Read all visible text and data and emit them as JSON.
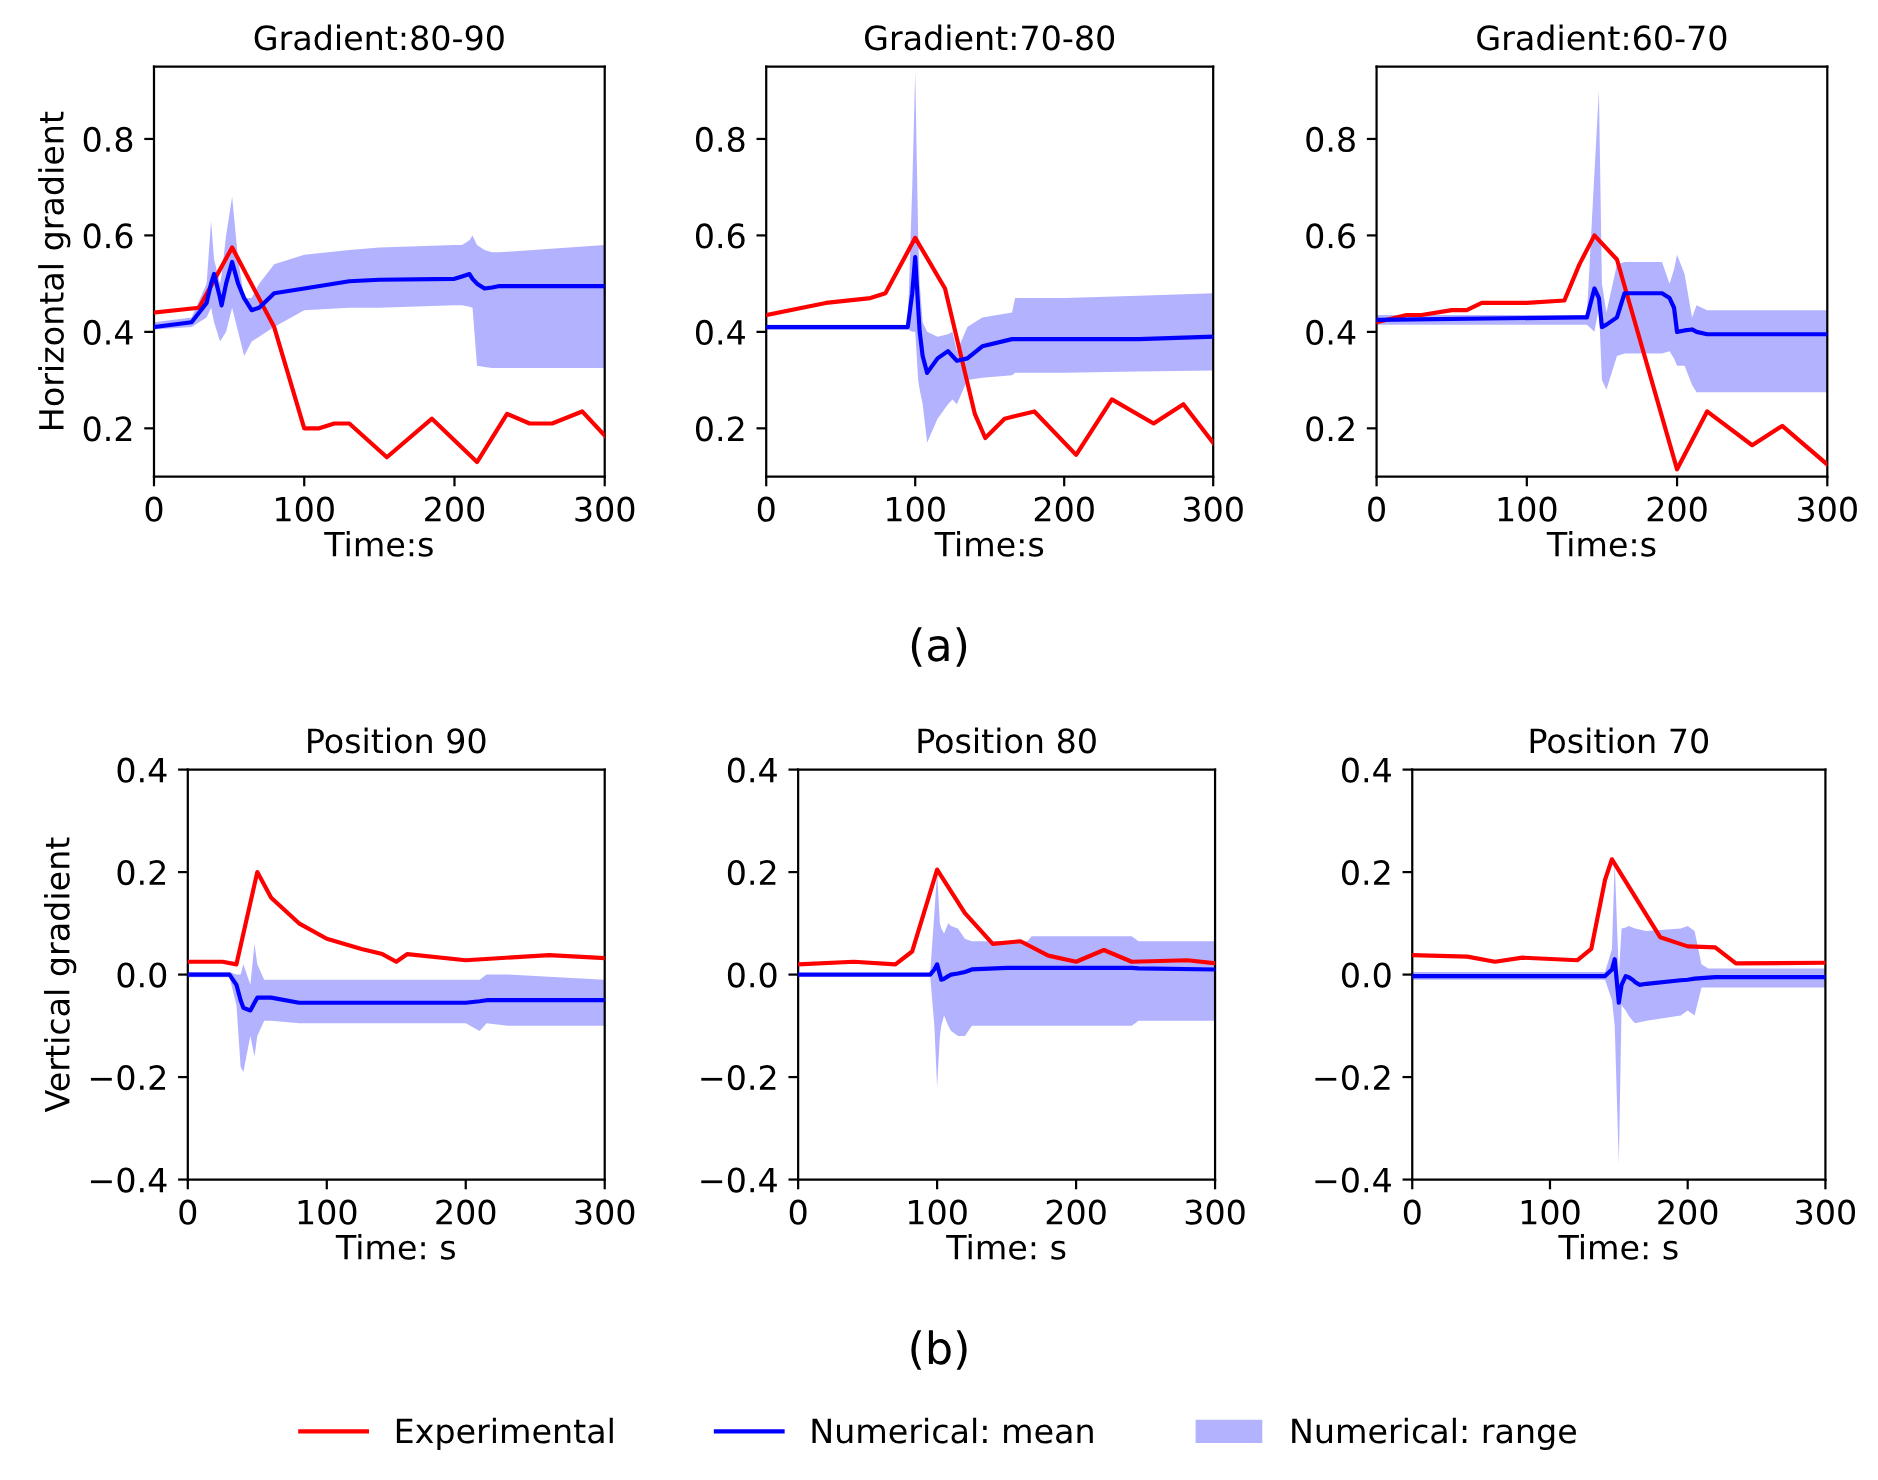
{
  "chart_data": [
    {
      "type": "line",
      "title": "Gradient:80-90",
      "xlabel": "Time:s",
      "ylabel": "Horizontal gradient",
      "xlim": [
        0,
        300
      ],
      "xticks": [
        0,
        100,
        200,
        300
      ],
      "ylim": [
        0.1,
        0.95
      ],
      "yticks": [
        0.2,
        0.4,
        0.6,
        0.8
      ],
      "grid": false,
      "series": [
        {
          "color": "#ff0000",
          "x": [
            0,
            30,
            52,
            80,
            100,
            110,
            120,
            130,
            155,
            185,
            215,
            235,
            250,
            265,
            285,
            300
          ],
          "values": [
            0.44,
            0.45,
            0.575,
            0.41,
            0.2,
            0.2,
            0.21,
            0.21,
            0.14,
            0.22,
            0.13,
            0.23,
            0.21,
            0.21,
            0.235,
            0.185
          ]
        },
        {
          "color": "#0000ff",
          "x": [
            0,
            25,
            35,
            38,
            40,
            44,
            45,
            48,
            52,
            56,
            60,
            65,
            70,
            75,
            80,
            100,
            130,
            150,
            200,
            205,
            210,
            212,
            215,
            220,
            225,
            230,
            300
          ],
          "values": [
            0.41,
            0.42,
            0.46,
            0.5,
            0.52,
            0.47,
            0.455,
            0.5,
            0.545,
            0.5,
            0.47,
            0.445,
            0.45,
            0.465,
            0.48,
            0.49,
            0.505,
            0.508,
            0.51,
            0.515,
            0.52,
            0.51,
            0.5,
            0.49,
            0.492,
            0.495,
            0.495
          ],
          "upper": [
            0.42,
            0.43,
            0.5,
            0.63,
            0.55,
            0.5,
            0.52,
            0.6,
            0.68,
            0.55,
            0.47,
            0.47,
            0.5,
            0.52,
            0.54,
            0.56,
            0.57,
            0.575,
            0.58,
            0.58,
            0.59,
            0.6,
            0.58,
            0.57,
            0.565,
            0.565,
            0.58
          ],
          "lower": [
            0.405,
            0.41,
            0.43,
            0.45,
            0.42,
            0.38,
            0.385,
            0.4,
            0.45,
            0.4,
            0.35,
            0.38,
            0.39,
            0.4,
            0.41,
            0.445,
            0.45,
            0.45,
            0.455,
            0.455,
            0.452,
            0.45,
            0.33,
            0.327,
            0.325,
            0.325,
            0.325
          ]
        }
      ]
    },
    {
      "type": "line",
      "title": "Gradient:70-80",
      "xlabel": "Time:s",
      "xlim": [
        0,
        300
      ],
      "xticks": [
        0,
        100,
        200,
        300
      ],
      "ylim": [
        0.1,
        0.95
      ],
      "yticks": [
        0.2,
        0.4,
        0.6,
        0.8
      ],
      "grid": false,
      "annotations": [
        "(a)"
      ],
      "series": [
        {
          "color": "#ff0000",
          "x": [
            0,
            40,
            70,
            80,
            100,
            120,
            140,
            147,
            160,
            180,
            208,
            232,
            260,
            280,
            300
          ],
          "values": [
            0.435,
            0.46,
            0.47,
            0.48,
            0.595,
            0.49,
            0.23,
            0.18,
            0.22,
            0.235,
            0.145,
            0.26,
            0.21,
            0.25,
            0.17
          ]
        },
        {
          "color": "#0000ff",
          "x": [
            0,
            95,
            98,
            100,
            102,
            103,
            105,
            108,
            115,
            122,
            125,
            128,
            135,
            145,
            165,
            167,
            200,
            250,
            300
          ],
          "values": [
            0.41,
            0.41,
            0.48,
            0.555,
            0.45,
            0.4,
            0.35,
            0.315,
            0.345,
            0.36,
            0.35,
            0.34,
            0.345,
            0.37,
            0.385,
            0.385,
            0.385,
            0.385,
            0.39
          ],
          "upper": [
            0.415,
            0.415,
            0.7,
            0.94,
            0.6,
            0.5,
            0.42,
            0.4,
            0.39,
            0.395,
            0.4,
            0.36,
            0.41,
            0.43,
            0.44,
            0.47,
            0.47,
            0.475,
            0.48
          ],
          "lower": [
            0.405,
            0.405,
            0.4,
            0.4,
            0.3,
            0.28,
            0.25,
            0.17,
            0.22,
            0.25,
            0.26,
            0.25,
            0.3,
            0.305,
            0.31,
            0.315,
            0.315,
            0.318,
            0.32
          ]
        }
      ]
    },
    {
      "type": "line",
      "title": "Gradient:60-70",
      "xlabel": "Time:s",
      "xlim": [
        0,
        300
      ],
      "xticks": [
        0,
        100,
        200,
        300
      ],
      "ylim": [
        0.1,
        0.95
      ],
      "yticks": [
        0.2,
        0.4,
        0.6,
        0.8
      ],
      "grid": false,
      "series": [
        {
          "color": "#ff0000",
          "x": [
            0,
            20,
            30,
            50,
            60,
            70,
            100,
            125,
            135,
            145,
            160,
            200,
            220,
            250,
            270,
            300
          ],
          "values": [
            0.42,
            0.435,
            0.435,
            0.445,
            0.445,
            0.46,
            0.46,
            0.465,
            0.54,
            0.6,
            0.55,
            0.115,
            0.235,
            0.165,
            0.205,
            0.125
          ]
        },
        {
          "color": "#0000ff",
          "x": [
            0,
            135,
            140,
            145,
            148,
            150,
            153,
            160,
            165,
            175,
            190,
            195,
            198,
            200,
            205,
            210,
            213,
            220,
            222,
            300
          ],
          "values": [
            0.425,
            0.43,
            0.43,
            0.49,
            0.47,
            0.41,
            0.415,
            0.43,
            0.48,
            0.48,
            0.48,
            0.47,
            0.45,
            0.4,
            0.403,
            0.405,
            0.4,
            0.395,
            0.395,
            0.395
          ],
          "upper": [
            0.435,
            0.435,
            0.435,
            0.73,
            0.9,
            0.5,
            0.44,
            0.54,
            0.545,
            0.545,
            0.545,
            0.5,
            0.53,
            0.56,
            0.52,
            0.43,
            0.455,
            0.445,
            0.445,
            0.445
          ],
          "lower": [
            0.415,
            0.415,
            0.415,
            0.4,
            0.45,
            0.3,
            0.28,
            0.35,
            0.355,
            0.355,
            0.355,
            0.36,
            0.345,
            0.33,
            0.33,
            0.29,
            0.275,
            0.275,
            0.275,
            0.275
          ]
        }
      ]
    },
    {
      "type": "line",
      "title": "Position 90",
      "xlabel": "Time: s",
      "ylabel": "Vertical gradient",
      "xlim": [
        0,
        300
      ],
      "xticks": [
        0,
        100,
        200,
        300
      ],
      "ylim": [
        -0.4,
        0.4
      ],
      "yticks": [
        {
          "value": -0.4,
          "label": "−0.4"
        },
        {
          "value": -0.2,
          "label": "−0.2"
        },
        {
          "value": 0,
          "label": "0.0"
        },
        {
          "value": 0.2,
          "label": "0.2"
        },
        {
          "value": 0.4,
          "label": "0.4"
        }
      ],
      "grid": false,
      "series": [
        {
          "color": "#ff0000",
          "x": [
            0,
            25,
            35,
            50,
            60,
            80,
            100,
            125,
            140,
            150,
            158,
            200,
            260,
            300
          ],
          "values": [
            0.025,
            0.025,
            0.02,
            0.2,
            0.15,
            0.1,
            0.07,
            0.05,
            0.04,
            0.025,
            0.04,
            0.028,
            0.038,
            0.032
          ]
        },
        {
          "color": "#0000ff",
          "x": [
            0,
            30,
            35,
            38,
            40,
            45,
            48,
            50,
            55,
            60,
            80,
            200,
            210,
            215,
            230,
            300
          ],
          "values": [
            0,
            0,
            -0.02,
            -0.05,
            -0.065,
            -0.07,
            -0.055,
            -0.045,
            -0.045,
            -0.045,
            -0.055,
            -0.055,
            -0.052,
            -0.05,
            -0.05,
            -0.05
          ],
          "upper": [
            0.005,
            0.005,
            0.0,
            0.0,
            0.02,
            -0.02,
            0.06,
            0.02,
            -0.01,
            -0.01,
            -0.01,
            -0.01,
            -0.01,
            0.0,
            0.0,
            -0.01
          ],
          "lower": [
            -0.005,
            -0.005,
            -0.06,
            -0.18,
            -0.19,
            -0.12,
            -0.16,
            -0.12,
            -0.09,
            -0.09,
            -0.095,
            -0.095,
            -0.11,
            -0.095,
            -0.1,
            -0.1
          ]
        }
      ]
    },
    {
      "type": "line",
      "title": "Position 80",
      "xlabel": "Time: s",
      "xlim": [
        0,
        300
      ],
      "xticks": [
        0,
        100,
        200,
        300
      ],
      "ylim": [
        -0.4,
        0.4
      ],
      "yticks": [
        {
          "value": -0.4,
          "label": "−0.4"
        },
        {
          "value": -0.2,
          "label": "−0.2"
        },
        {
          "value": 0,
          "label": "0.0"
        },
        {
          "value": 0.2,
          "label": "0.2"
        },
        {
          "value": 0.4,
          "label": "0.4"
        }
      ],
      "grid": false,
      "legend": "bottom",
      "annotations": [
        "(b)",
        "Numerical: range"
      ],
      "series": [
        {
          "name": "Experimental",
          "color": "#ff0000",
          "x": [
            0,
            40,
            70,
            82,
            100,
            120,
            140,
            160,
            180,
            200,
            220,
            240,
            280,
            300
          ],
          "values": [
            0.02,
            0.025,
            0.02,
            0.045,
            0.205,
            0.12,
            0.06,
            0.065,
            0.037,
            0.025,
            0.048,
            0.025,
            0.028,
            0.022
          ]
        },
        {
          "name": "Numerical: mean",
          "color": "#0000ff",
          "x": [
            0,
            95,
            98,
            100,
            102,
            103,
            105,
            108,
            110,
            115,
            120,
            125,
            150,
            165,
            168,
            240,
            245,
            300
          ],
          "values": [
            0,
            0,
            0.01,
            0.02,
            0,
            -0.01,
            -0.008,
            -0.003,
            0,
            0.002,
            0.005,
            0.01,
            0.013,
            0.013,
            0.013,
            0.013,
            0.012,
            0.01
          ],
          "upper": [
            0.003,
            0.003,
            0.12,
            0.2,
            0.1,
            0.09,
            0.08,
            0.1,
            0.095,
            0.09,
            0.07,
            0.065,
            0.065,
            0.065,
            0.075,
            0.075,
            0.065,
            0.065
          ],
          "lower": [
            -0.003,
            -0.003,
            -0.1,
            -0.22,
            -0.12,
            -0.1,
            -0.08,
            -0.1,
            -0.11,
            -0.12,
            -0.12,
            -0.1,
            -0.1,
            -0.1,
            -0.1,
            -0.1,
            -0.09,
            -0.09
          ]
        }
      ]
    },
    {
      "type": "line",
      "title": "Position 70",
      "xlabel": "Time: s",
      "xlim": [
        0,
        300
      ],
      "xticks": [
        0,
        100,
        200,
        300
      ],
      "ylim": [
        -0.4,
        0.4
      ],
      "yticks": [
        {
          "value": -0.4,
          "label": "−0.4"
        },
        {
          "value": -0.2,
          "label": "−0.2"
        },
        {
          "value": 0,
          "label": "0.0"
        },
        {
          "value": 0.2,
          "label": "0.2"
        },
        {
          "value": 0.4,
          "label": "0.4"
        }
      ],
      "grid": false,
      "series": [
        {
          "color": "#ff0000",
          "x": [
            0,
            40,
            60,
            80,
            120,
            130,
            140,
            145,
            180,
            200,
            220,
            235,
            300
          ],
          "values": [
            0.038,
            0.035,
            0.025,
            0.033,
            0.028,
            0.05,
            0.185,
            0.225,
            0.073,
            0.055,
            0.053,
            0.022,
            0.023
          ]
        },
        {
          "color": "#0000ff",
          "x": [
            0,
            140,
            145,
            147,
            150,
            152,
            155,
            157,
            160,
            162,
            165,
            170,
            195,
            200,
            205,
            210,
            215,
            220,
            300
          ],
          "values": [
            -0.003,
            -0.003,
            0.01,
            0.03,
            -0.055,
            -0.02,
            -0.003,
            -0.005,
            -0.01,
            -0.015,
            -0.02,
            -0.018,
            -0.011,
            -0.01,
            -0.008,
            -0.007,
            -0.006,
            -0.005,
            -0.005
          ],
          "upper": [
            0.005,
            0.005,
            0.05,
            0.22,
            0.0,
            0.09,
            0.092,
            0.095,
            0.092,
            0.09,
            0.088,
            0.085,
            0.09,
            0.095,
            0.085,
            0.02,
            0.012,
            0.012,
            0.012
          ],
          "lower": [
            -0.01,
            -0.01,
            -0.05,
            -0.1,
            -0.37,
            -0.06,
            -0.07,
            -0.08,
            -0.09,
            -0.095,
            -0.093,
            -0.09,
            -0.08,
            -0.07,
            -0.08,
            -0.025,
            -0.025,
            -0.025,
            -0.025
          ]
        }
      ]
    }
  ]
}
